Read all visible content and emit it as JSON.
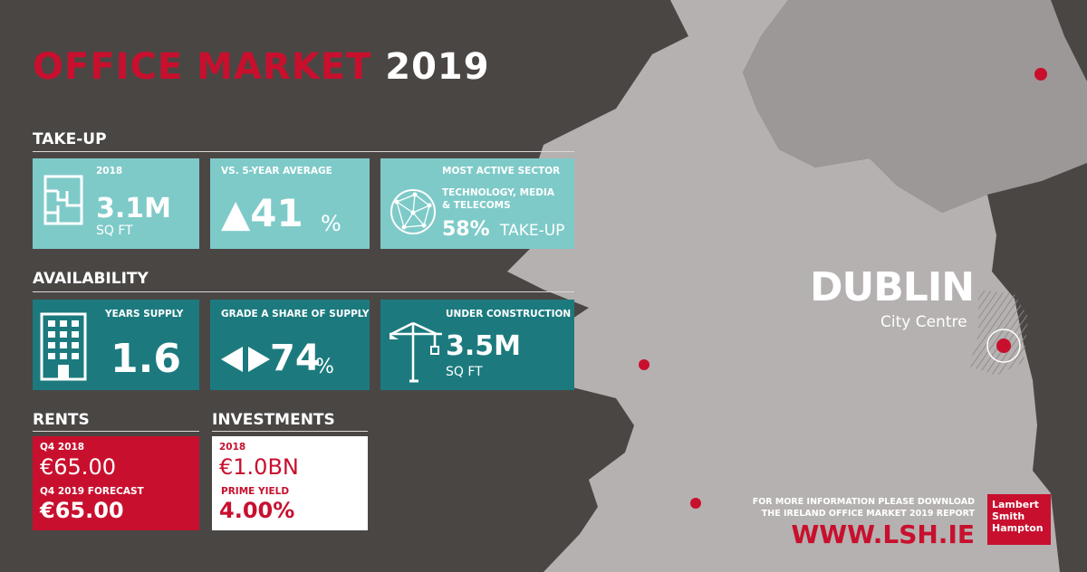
{
  "title": {
    "part1": "OFFICE MARKET",
    "part2": "2019"
  },
  "colors": {
    "red": "#c8102e",
    "teal": "#7ecac8",
    "dark_teal": "#1c7a7e",
    "background": "#4a4644",
    "land": "#b5b1b0"
  },
  "take_up": {
    "heading": "TAKE-UP",
    "tile1": {
      "caption": "2018",
      "value": "3.1M",
      "unit": "SQ FT",
      "icon": "floorplan-icon"
    },
    "tile2": {
      "caption": "VS. 5-YEAR AVERAGE",
      "value": "▲41",
      "unit": "%",
      "icon": "up-triangle-icon"
    },
    "tile3": {
      "caption": "MOST ACTIVE SECTOR",
      "sector_line1": "TECHNOLOGY, MEDIA",
      "sector_line2": "& TELECOMS",
      "value": "58%",
      "unit": "TAKE-UP",
      "icon": "globe-network-icon"
    }
  },
  "availability": {
    "heading": "AVAILABILITY",
    "tile1": {
      "caption": "YEARS SUPPLY",
      "value": "1.6",
      "icon": "building-icon"
    },
    "tile2": {
      "caption": "GRADE A SHARE OF SUPPLY",
      "value": "74",
      "unit": "%",
      "icon": "double-arrow-icon"
    },
    "tile3": {
      "caption": "UNDER CONSTRUCTION",
      "value": "3.5M",
      "unit": "SQ FT",
      "icon": "crane-icon"
    }
  },
  "rents": {
    "heading": "RENTS",
    "label1": "Q4 2018",
    "value1": "€65.00",
    "label2": "Q4 2019 FORECAST",
    "value2": "€65.00"
  },
  "investments": {
    "heading": "INVESTMENTS",
    "label1": "2018",
    "value1": "€1.0BN",
    "label2": "PRIME YIELD",
    "value2": "4.00%"
  },
  "map": {
    "city": "DUBLIN",
    "subtitle": "City Centre"
  },
  "footer": {
    "note_line1": "FOR MORE INFORMATION PLEASE DOWNLOAD",
    "note_line2": "THE IRELAND OFFICE MARKET 2019 REPORT",
    "website": "WWW.LSH.IE",
    "logo_line1": "Lambert",
    "logo_line2": "Smith",
    "logo_line3": "Hampton"
  }
}
